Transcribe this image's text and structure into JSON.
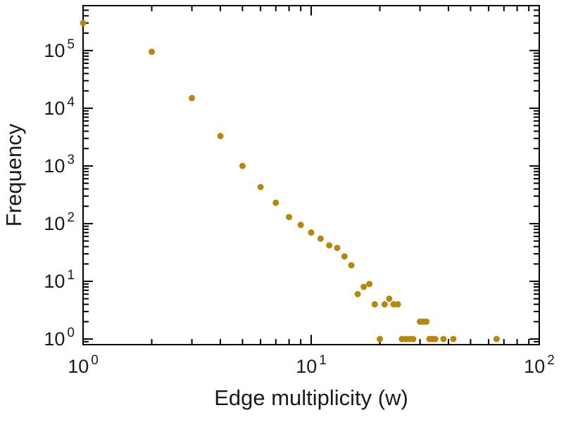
{
  "figure": {
    "background": "#ffffff",
    "frame_color": "#000000",
    "text_color": "#1a1a1a"
  },
  "chart_data": {
    "type": "scatter",
    "title": "",
    "xlabel": "Edge multiplicity (w)",
    "ylabel": "Frequency",
    "xscale": "log",
    "yscale": "log",
    "xlim": [
      1,
      100
    ],
    "ylim": [
      0.8,
      600000
    ],
    "grid": false,
    "legend": null,
    "marker": {
      "shape": "circle",
      "color": "#b8860b",
      "radius": 4.5
    },
    "x_tick_base": "10",
    "y_tick_base": "10",
    "x_tick_exponents": [
      "0",
      "1",
      "2"
    ],
    "y_tick_exponents": [
      "0",
      "1",
      "2",
      "3",
      "4",
      "5"
    ],
    "points": [
      [
        1,
        300000
      ],
      [
        2,
        95000
      ],
      [
        3,
        15000
      ],
      [
        4,
        3300
      ],
      [
        5,
        1000
      ],
      [
        6,
        430
      ],
      [
        7,
        230
      ],
      [
        8,
        130
      ],
      [
        9,
        95
      ],
      [
        10,
        70
      ],
      [
        11,
        55
      ],
      [
        12,
        42
      ],
      [
        13,
        38
      ],
      [
        14,
        27
      ],
      [
        15,
        19
      ],
      [
        16,
        6
      ],
      [
        17,
        8
      ],
      [
        18,
        9
      ],
      [
        19,
        4
      ],
      [
        20,
        1
      ],
      [
        21,
        4
      ],
      [
        22,
        5
      ],
      [
        23,
        4
      ],
      [
        24,
        4
      ],
      [
        25,
        1
      ],
      [
        26,
        1
      ],
      [
        27,
        1
      ],
      [
        28,
        1
      ],
      [
        30,
        2
      ],
      [
        31,
        2
      ],
      [
        32,
        2
      ],
      [
        33,
        1
      ],
      [
        34,
        1
      ],
      [
        35,
        1
      ],
      [
        38,
        1
      ],
      [
        42,
        1
      ],
      [
        65,
        1
      ]
    ]
  }
}
